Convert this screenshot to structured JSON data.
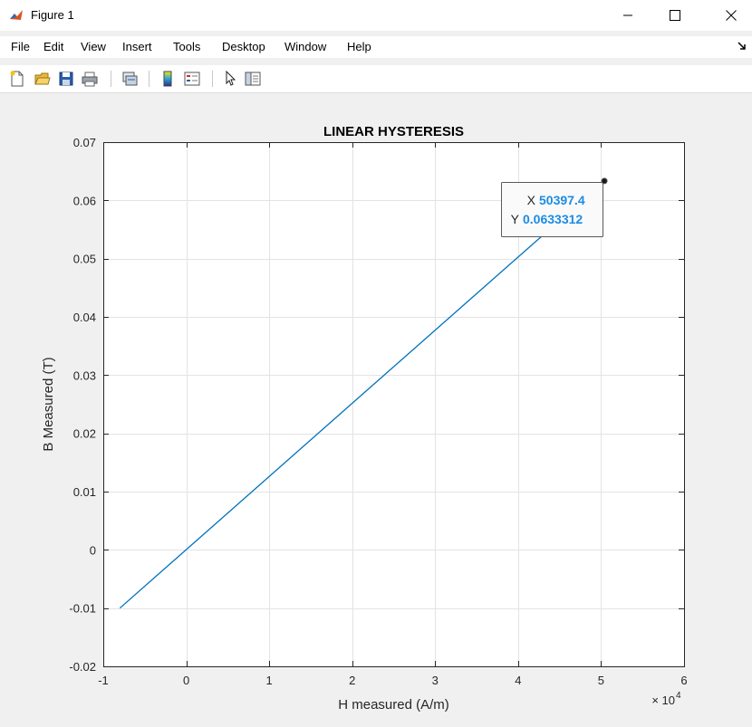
{
  "window": {
    "title": "Figure 1",
    "icon": "matlab-icon"
  },
  "window_controls": [
    "minimize-icon",
    "maximize-icon",
    "close-icon"
  ],
  "menu": [
    "File",
    "Edit",
    "View",
    "Insert",
    "Tools",
    "Desktop",
    "Window",
    "Help"
  ],
  "toolbar": [
    "new-figure-icon",
    "open-icon",
    "save-icon",
    "print-icon",
    "link-axes-icon",
    "colorbar-icon",
    "legend-icon",
    "pointer-icon",
    "property-inspector-icon"
  ],
  "datatip": {
    "x_label": "X",
    "x_value": "50397.4",
    "y_label": "Y",
    "y_value": "0.0633312"
  },
  "chart_data": {
    "type": "line",
    "title": "LINEAR HYSTERESIS",
    "xlabel": "H measured (A/m)",
    "ylabel": "B Measured (T)",
    "x_exponent_label": "× 10",
    "x_exponent_power": "4",
    "xlim": [
      -1,
      6
    ],
    "ylim": [
      -0.02,
      0.07
    ],
    "xticks": [
      -1,
      0,
      1,
      2,
      3,
      4,
      5,
      6
    ],
    "xtick_labels": [
      "-1",
      "0",
      "1",
      "2",
      "3",
      "4",
      "5",
      "6"
    ],
    "yticks": [
      -0.02,
      -0.01,
      0,
      0.01,
      0.02,
      0.03,
      0.04,
      0.05,
      0.06,
      0.07
    ],
    "ytick_labels": [
      "-0.02",
      "-0.01",
      "0",
      "0.01",
      "0.02",
      "0.03",
      "0.04",
      "0.05",
      "0.06",
      "0.07"
    ],
    "grid": true,
    "series": [
      {
        "color": "#0072bd",
        "x": [
          -0.8,
          5.03974
        ],
        "y": [
          -0.01,
          0.0633312
        ]
      }
    ]
  }
}
